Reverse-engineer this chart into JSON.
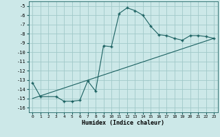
{
  "xlabel": "Humidex (Indice chaleur)",
  "bg_color": "#cce8e8",
  "grid_color": "#a0c8c8",
  "line_color": "#1a6060",
  "xlim": [
    -0.5,
    23.5
  ],
  "ylim": [
    -16.5,
    -4.5
  ],
  "xticks": [
    0,
    1,
    2,
    3,
    4,
    5,
    6,
    7,
    8,
    9,
    10,
    11,
    12,
    13,
    14,
    15,
    16,
    17,
    18,
    19,
    20,
    21,
    22,
    23
  ],
  "yticks": [
    -5,
    -6,
    -7,
    -8,
    -9,
    -10,
    -11,
    -12,
    -13,
    -14,
    -15,
    -16
  ],
  "curve1_x": [
    0,
    1,
    3,
    4,
    5,
    6,
    7,
    8,
    9,
    10,
    11,
    12,
    13,
    14,
    15,
    16,
    17,
    18,
    19,
    20,
    21,
    22,
    23
  ],
  "curve1_y": [
    -13.3,
    -14.8,
    -14.8,
    -15.3,
    -15.3,
    -15.2,
    -13.1,
    -14.2,
    -9.3,
    -9.4,
    -5.8,
    -5.2,
    -5.5,
    -6.0,
    -7.2,
    -8.1,
    -8.2,
    -8.5,
    -8.7,
    -8.2,
    -8.2,
    -8.3,
    -8.5
  ],
  "curve2_x": [
    0,
    23
  ],
  "curve2_y": [
    -15.0,
    -8.5
  ]
}
